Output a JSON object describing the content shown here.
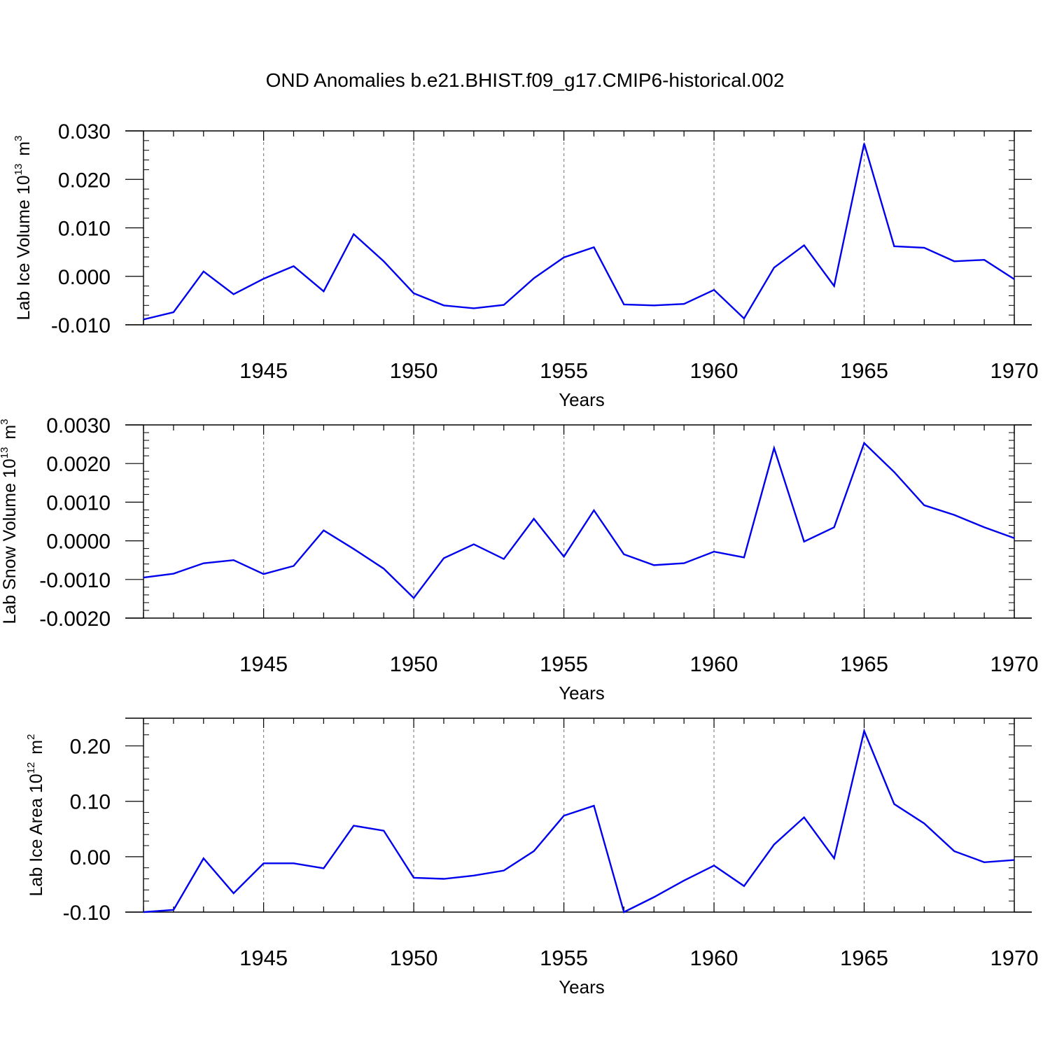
{
  "title": "OND Anomalies b.e21.BHIST.f09_g17.CMIP6-historical.002",
  "series_color": "#0000ee",
  "chart_data": [
    {
      "type": "line",
      "ylabel": "Lab Ice Volume",
      "ylabel_unit_base": "10",
      "ylabel_unit_exp": "13",
      "ylabel_unit_symbol": "m",
      "ylabel_unit_symbol_exp": "3",
      "xlabel": "Years",
      "xlim": [
        1941,
        1970
      ],
      "ylim": [
        -0.01,
        0.03
      ],
      "xticks": [
        1945,
        1950,
        1955,
        1960,
        1965,
        1970
      ],
      "yticks": [
        -0.01,
        0.0,
        0.01,
        0.02,
        0.03
      ],
      "ytick_labels": [
        "-0.010",
        "0.000",
        "0.010",
        "0.020",
        "0.030"
      ],
      "grid": "vertical dashed at major x ticks",
      "x": [
        1941,
        1942,
        1943,
        1944,
        1945,
        1946,
        1947,
        1948,
        1949,
        1950,
        1951,
        1952,
        1953,
        1954,
        1955,
        1956,
        1957,
        1958,
        1959,
        1960,
        1961,
        1962,
        1963,
        1964,
        1965,
        1966,
        1967,
        1968,
        1969,
        1970
      ],
      "values": [
        -0.0089,
        -0.0074,
        0.001,
        -0.0037,
        -0.0005,
        0.0021,
        -0.0031,
        0.0087,
        0.0031,
        -0.0035,
        -0.006,
        -0.0066,
        -0.0059,
        -0.0004,
        0.0039,
        0.006,
        -0.0058,
        -0.006,
        -0.0057,
        -0.0028,
        -0.0087,
        0.0018,
        0.0064,
        -0.002,
        0.0274,
        0.0062,
        0.0059,
        0.0031,
        0.0034,
        -0.0006
      ]
    },
    {
      "type": "line",
      "ylabel": "Lab Snow Volume",
      "ylabel_unit_base": "10",
      "ylabel_unit_exp": "13",
      "ylabel_unit_symbol": "m",
      "ylabel_unit_symbol_exp": "3",
      "xlabel": "Years",
      "xlim": [
        1941,
        1970
      ],
      "ylim": [
        -0.002,
        0.003
      ],
      "xticks": [
        1945,
        1950,
        1955,
        1960,
        1965,
        1970
      ],
      "yticks": [
        -0.002,
        -0.001,
        0.0,
        0.001,
        0.002,
        0.003
      ],
      "ytick_labels": [
        "-0.0020",
        "-0.0010",
        "0.0000",
        "0.0010",
        "0.0020",
        "0.0030"
      ],
      "grid": "vertical dashed at major x ticks",
      "x": [
        1941,
        1942,
        1943,
        1944,
        1945,
        1946,
        1947,
        1948,
        1949,
        1950,
        1951,
        1952,
        1953,
        1954,
        1955,
        1956,
        1957,
        1958,
        1959,
        1960,
        1961,
        1962,
        1963,
        1964,
        1965,
        1966,
        1967,
        1968,
        1969,
        1970
      ],
      "values": [
        -0.00095,
        -0.00085,
        -0.00058,
        -0.0005,
        -0.00086,
        -0.00065,
        0.00027,
        -0.00021,
        -0.00072,
        -0.00148,
        -0.00045,
        -9e-05,
        -0.00047,
        0.00057,
        -0.00041,
        0.00079,
        -0.00035,
        -0.00063,
        -0.00058,
        -0.00028,
        -0.00043,
        0.0024,
        -2e-05,
        0.00035,
        0.00253,
        0.00178,
        0.00092,
        0.00067,
        0.00035,
        7e-05
      ]
    },
    {
      "type": "line",
      "ylabel": "Lab Ice Area",
      "ylabel_unit_base": "10",
      "ylabel_unit_exp": "12",
      "ylabel_unit_symbol": "m",
      "ylabel_unit_symbol_exp": "2",
      "xlabel": "Years",
      "xlim": [
        1941,
        1970
      ],
      "ylim": [
        -0.1,
        0.25
      ],
      "xticks": [
        1945,
        1950,
        1955,
        1960,
        1965,
        1970
      ],
      "yticks": [
        -0.1,
        0.0,
        0.1,
        0.2
      ],
      "ytick_labels": [
        "-0.10",
        "0.00",
        "0.10",
        "0.20"
      ],
      "grid": "vertical dashed at major x ticks",
      "x": [
        1941,
        1942,
        1943,
        1944,
        1945,
        1946,
        1947,
        1948,
        1949,
        1950,
        1951,
        1952,
        1953,
        1954,
        1955,
        1956,
        1957,
        1958,
        1959,
        1960,
        1961,
        1962,
        1963,
        1964,
        1965,
        1966,
        1967,
        1968,
        1969,
        1970
      ],
      "values": [
        -0.1,
        -0.096,
        -0.003,
        -0.066,
        -0.012,
        -0.012,
        -0.021,
        0.056,
        0.047,
        -0.038,
        -0.04,
        -0.034,
        -0.025,
        0.01,
        0.074,
        0.092,
        -0.1,
        -0.073,
        -0.043,
        -0.016,
        -0.053,
        0.022,
        0.071,
        -0.003,
        0.227,
        0.095,
        0.06,
        0.01,
        -0.01,
        -0.006
      ]
    }
  ]
}
